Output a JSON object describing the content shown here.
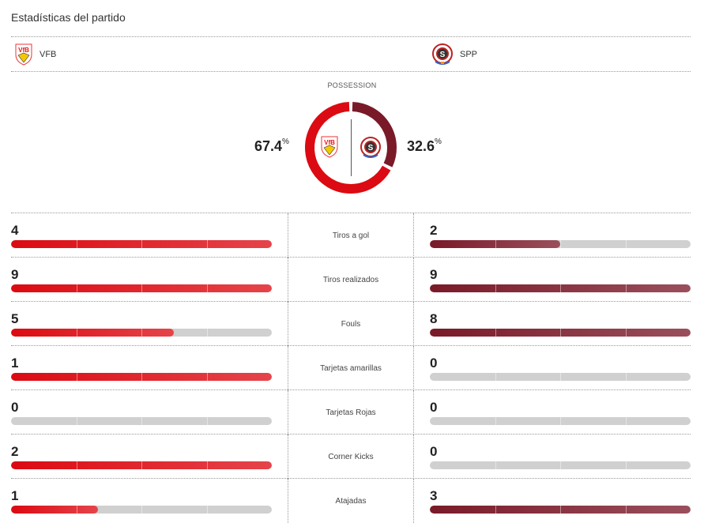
{
  "title": "Estadísticas del partido",
  "home": {
    "name": "VFB",
    "logo": "vfb-stuttgart-crest",
    "color": "#dc0a12"
  },
  "away": {
    "name": "SPP",
    "logo": "sparta-praha-crest",
    "color": "#7a1a28"
  },
  "possession": {
    "label": "POSSESSION",
    "home": 67.4,
    "away": 32.6,
    "home_text": "67.4",
    "away_text": "32.6",
    "unit": "%"
  },
  "stats": [
    {
      "label": "Tiros a gol",
      "home": 4,
      "away": 2
    },
    {
      "label": "Tiros realizados",
      "home": 9,
      "away": 9
    },
    {
      "label": "Fouls",
      "home": 5,
      "away": 8
    },
    {
      "label": "Tarjetas amarillas",
      "home": 1,
      "away": 0
    },
    {
      "label": "Tarjetas Rojas",
      "home": 0,
      "away": 0
    },
    {
      "label": "Corner Kicks",
      "home": 2,
      "away": 0
    },
    {
      "label": "Atajadas",
      "home": 1,
      "away": 3
    }
  ]
}
